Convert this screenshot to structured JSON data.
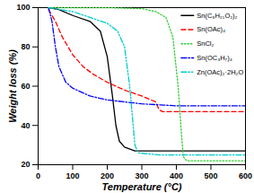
{
  "chart_data": {
    "type": "line",
    "x_label": "Temperature (°C)",
    "y_label": "Weight loss (%)",
    "xlim": [
      0,
      600
    ],
    "xticks": [
      0,
      100,
      200,
      300,
      400,
      500,
      600
    ],
    "ylim": [
      20,
      100
    ],
    "yticks": [
      20,
      40,
      60,
      80,
      100
    ],
    "legend": "upper right",
    "series": [
      {
        "name": "Sn(C₈H₁₅O₂)₂",
        "color": "#000000",
        "line_style": "solid",
        "x": [
          30,
          60,
          100,
          150,
          180,
          200,
          215,
          225,
          235,
          250,
          280,
          400,
          600
        ],
        "values": [
          100,
          99,
          96,
          93,
          88,
          75,
          55,
          40,
          32,
          29,
          27,
          27,
          27
        ]
      },
      {
        "name": "Sn(OAc)₄",
        "color": "#ff0000",
        "line_style": "dashed",
        "x": [
          30,
          50,
          70,
          100,
          130,
          160,
          200,
          250,
          300,
          340,
          350,
          360,
          400,
          600
        ],
        "values": [
          99,
          93,
          85,
          76,
          70,
          66,
          62,
          58,
          55,
          52,
          48,
          47,
          47,
          47
        ]
      },
      {
        "name": "SnCl₂",
        "color": "#33cc33",
        "line_style": "dotted",
        "x": [
          30,
          200,
          300,
          340,
          370,
          390,
          405,
          415,
          420,
          430,
          600
        ],
        "values": [
          100,
          100,
          99.5,
          98,
          95,
          85,
          60,
          35,
          24,
          22,
          22
        ]
      },
      {
        "name": "Sn(OC₃H₇)₄",
        "color": "#0000ff",
        "line_style": "dashdot",
        "x": [
          30,
          40,
          50,
          60,
          80,
          100,
          150,
          200,
          250,
          300,
          400,
          600
        ],
        "values": [
          100,
          93,
          80,
          70,
          62,
          59,
          55,
          53,
          52,
          51,
          50,
          50
        ]
      },
      {
        "name": "Zn(OAc)₂·2H₂O",
        "color": "#00cccc",
        "line_style": "dashdotdot",
        "x": [
          30,
          100,
          150,
          200,
          230,
          250,
          265,
          275,
          280,
          290,
          350,
          600
        ],
        "values": [
          100,
          98,
          95,
          92,
          88,
          80,
          60,
          40,
          30,
          26,
          25,
          25
        ]
      }
    ]
  }
}
